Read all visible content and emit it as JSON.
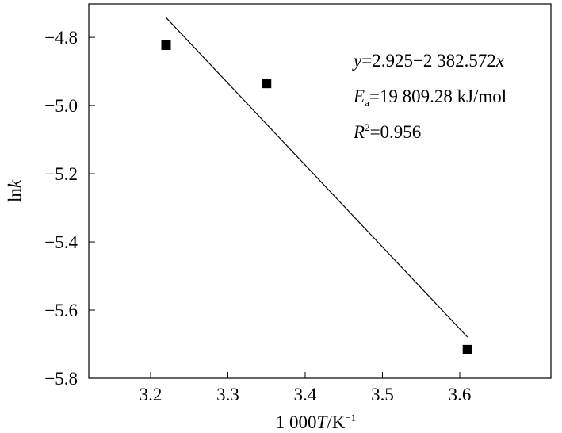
{
  "chart_data": {
    "type": "scatter",
    "x_label": [
      {
        "text": "1 000",
        "style": "normal"
      },
      {
        "text": "T",
        "style": "italic"
      },
      {
        "text": "/K",
        "style": "normal"
      },
      {
        "text": "−1",
        "style": "sup"
      }
    ],
    "y_label": [
      {
        "text": "ln",
        "style": "normal"
      },
      {
        "text": "k",
        "style": "italic"
      }
    ],
    "x": [
      3.22,
      3.35,
      3.61
    ],
    "values": [
      -4.823,
      -4.935,
      -5.716
    ],
    "color": "#000000",
    "fit_line": {
      "x": [
        3.22,
        3.61
      ],
      "values": [
        -4.742,
        -5.679
      ]
    },
    "annotations": [
      [
        {
          "text": "y",
          "style": "italic"
        },
        {
          "text": "=2.925−2 382.572",
          "style": "normal"
        },
        {
          "text": "x",
          "style": "italic"
        }
      ],
      [
        {
          "text": "E",
          "style": "italic"
        },
        {
          "text": "a",
          "style": "sub"
        },
        {
          "text": "=19 809.28 kJ/mol",
          "style": "normal"
        }
      ],
      [
        {
          "text": "R",
          "style": "italic"
        },
        {
          "text": "2",
          "style": "sup"
        },
        {
          "text": "=0.956",
          "style": "normal"
        }
      ]
    ],
    "xlim": [
      3.12,
      3.718
    ],
    "ylim": [
      -5.8,
      -4.702
    ],
    "xticks": [
      {
        "value": 3.2,
        "label": "3.2"
      },
      3.3,
      3.4,
      3.5,
      3.6
    ],
    "yticks": [
      {
        "value": -5.8,
        "label": "−5.8"
      },
      {
        "value": -5.6,
        "label": "−5.6"
      },
      {
        "value": -5.4,
        "label": "−5.4"
      },
      {
        "value": -5.2,
        "label": "−5.2"
      },
      {
        "value": -5.0,
        "label": "−5.0"
      },
      {
        "value": -4.8,
        "label": "−4.8"
      }
    ]
  }
}
